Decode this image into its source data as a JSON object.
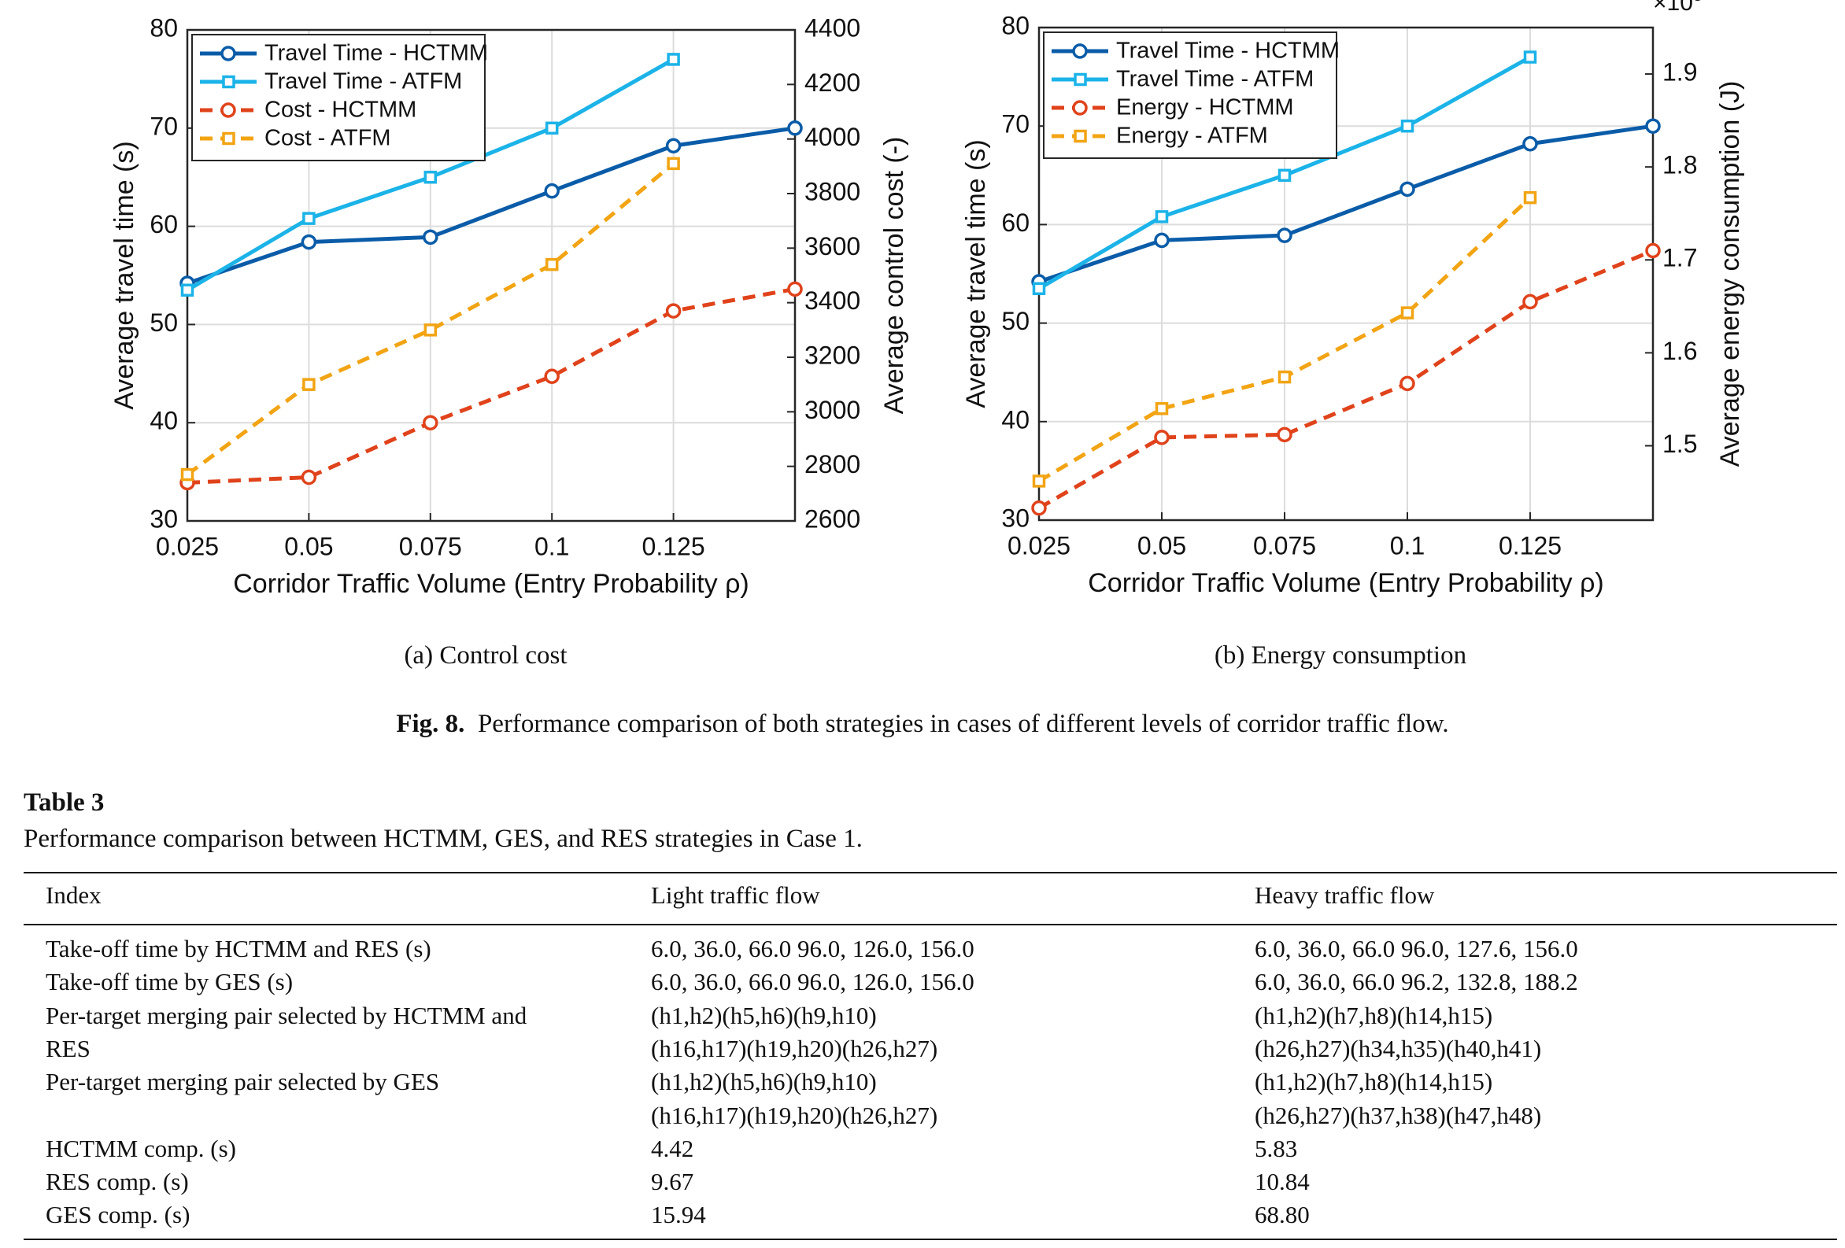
{
  "charts_meta": {
    "a": {
      "subcaption": "(a) Control cost"
    },
    "b": {
      "subcaption": "(b) Energy consumption"
    }
  },
  "figure": {
    "label": "Fig. 8.",
    "caption": "Performance comparison of both strategies in cases of different levels of corridor traffic flow."
  },
  "chart_data": [
    {
      "type": "line",
      "title": "",
      "xlabel": "Corridor Traffic Volume (Entry Probability ρ)",
      "ylabel": "Average travel time (s)",
      "y2label": "Average control cost (-)",
      "x": [
        0.025,
        0.05,
        0.075,
        0.1,
        0.125,
        0.15
      ],
      "x_ticks": [
        "0.025",
        "0.05",
        "0.075",
        "0.1",
        "0.125"
      ],
      "ylim": [
        30,
        80
      ],
      "y_ticks": [
        30,
        40,
        50,
        60,
        70,
        80
      ],
      "y2lim": [
        2600,
        4400
      ],
      "y2_ticks": [
        2600,
        2800,
        3000,
        3200,
        3400,
        3600,
        3800,
        4000,
        4200,
        4400
      ],
      "grid": true,
      "legend_position": "top-left",
      "series": [
        {
          "name": "Travel Time - HCTMM",
          "axis": "left",
          "style": "solid",
          "marker": "circle",
          "color": "#0a5ca8",
          "values": [
            54.2,
            58.4,
            58.9,
            63.6,
            68.2,
            70.0
          ]
        },
        {
          "name": "Travel Time - ATFM",
          "axis": "left",
          "style": "solid",
          "marker": "square",
          "color": "#1bb3e8",
          "values": [
            53.5,
            60.8,
            65.0,
            70.0,
            77.0,
            null
          ]
        },
        {
          "name": "Cost - HCTMM",
          "axis": "right",
          "style": "dashed",
          "marker": "circle",
          "color": "#e0431b",
          "values": [
            2740,
            2760,
            2960,
            3130,
            3370,
            3450
          ]
        },
        {
          "name": "Cost - ATFM",
          "axis": "right",
          "style": "dashed",
          "marker": "square",
          "color": "#f2a413",
          "values": [
            2770,
            3100,
            3300,
            3540,
            3910,
            null
          ]
        }
      ]
    },
    {
      "type": "line",
      "title": "",
      "xlabel": "Corridor Traffic Volume (Entry Probability ρ)",
      "ylabel": "Average travel time (s)",
      "y2label": "Average energy consumption (J)",
      "y2_exponent": "×10",
      "x": [
        0.025,
        0.05,
        0.075,
        0.1,
        0.125,
        0.15
      ],
      "x_ticks": [
        "0.025",
        "0.05",
        "0.075",
        "0.1",
        "0.125"
      ],
      "ylim": [
        30,
        80
      ],
      "y_ticks": [
        30,
        40,
        50,
        60,
        70,
        80
      ],
      "y2lim": [
        1.42,
        1.95
      ],
      "y2_ticks": [
        1.5,
        1.6,
        1.7,
        1.8,
        1.9
      ],
      "grid": true,
      "legend_position": "top-left",
      "series": [
        {
          "name": "Travel Time - HCTMM",
          "axis": "left",
          "style": "solid",
          "marker": "circle",
          "color": "#0a5ca8",
          "values": [
            54.2,
            58.4,
            58.9,
            63.6,
            68.2,
            70.0
          ]
        },
        {
          "name": "Travel Time - ATFM",
          "axis": "left",
          "style": "solid",
          "marker": "square",
          "color": "#1bb3e8",
          "values": [
            53.5,
            60.8,
            65.0,
            70.0,
            77.0,
            null
          ]
        },
        {
          "name": "Energy - HCTMM",
          "axis": "right",
          "style": "dashed",
          "marker": "circle",
          "color": "#e0431b",
          "values": [
            1.433,
            1.509,
            1.512,
            1.567,
            1.655,
            1.71
          ]
        },
        {
          "name": "Energy - ATFM",
          "axis": "right",
          "style": "dashed",
          "marker": "square",
          "color": "#f2a413",
          "values": [
            1.462,
            1.54,
            1.574,
            1.643,
            1.767,
            null
          ]
        }
      ]
    }
  ],
  "table": {
    "title": "Table 3",
    "description": "Performance comparison between HCTMM, GES, and RES strategies in Case 1.",
    "headers": [
      "Index",
      "Light traffic flow",
      "Heavy traffic flow"
    ],
    "rows": [
      {
        "index": "Take-off time by HCTMM and RES (s)",
        "light": "6.0, 36.0, 66.0 96.0, 126.0, 156.0",
        "heavy": "6.0, 36.0, 66.0 96.0, 127.6, 156.0"
      },
      {
        "index": "Take-off time by GES (s)",
        "light": "6.0, 36.0, 66.0 96.0, 126.0, 156.0",
        "heavy": "6.0, 36.0, 66.0 96.2, 132.8, 188.2"
      },
      {
        "index": "Per-target merging pair selected by HCTMM and",
        "light": "(h1,h2)(h5,h6)(h9,h10)",
        "heavy": "(h1,h2)(h7,h8)(h14,h15)"
      },
      {
        "index": "RES",
        "light": "(h16,h17)(h19,h20)(h26,h27)",
        "heavy": "(h26,h27)(h34,h35)(h40,h41)"
      },
      {
        "index": "Per-target merging pair selected by GES",
        "light": "(h1,h2)(h5,h6)(h9,h10)",
        "heavy": "(h1,h2)(h7,h8)(h14,h15)"
      },
      {
        "index": "",
        "light": "(h16,h17)(h19,h20)(h26,h27)",
        "heavy": "(h26,h27)(h37,h38)(h47,h48)"
      },
      {
        "index": "HCTMM comp. (s)",
        "light": "4.42",
        "heavy": "5.83"
      },
      {
        "index": "RES comp. (s)",
        "light": "9.67",
        "heavy": "10.84"
      },
      {
        "index": "GES comp. (s)",
        "light": "15.94",
        "heavy": "68.80"
      }
    ]
  }
}
